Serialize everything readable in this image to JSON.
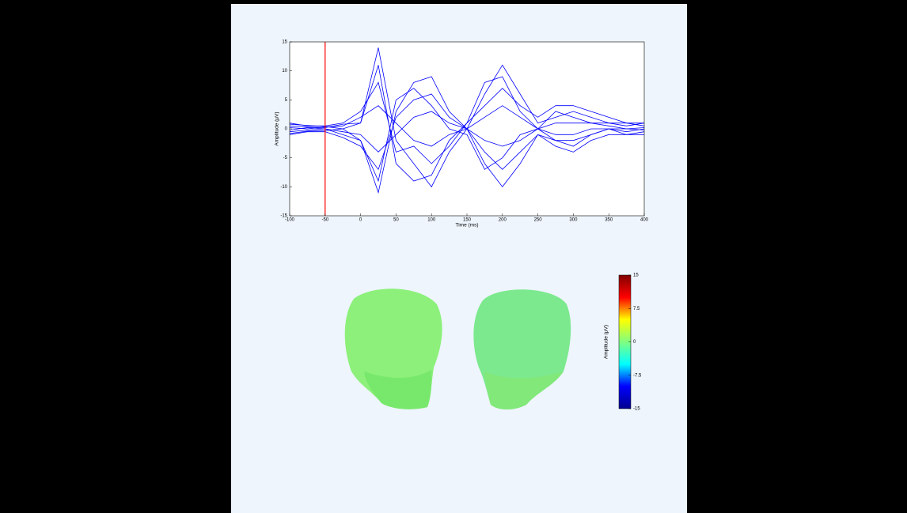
{
  "chart_data": [
    {
      "type": "line",
      "xlabel": "Time (ms)",
      "ylabel": "Amplitude (μV)",
      "x": [
        -100,
        -75,
        -50,
        -25,
        0,
        25,
        50,
        75,
        100,
        125,
        150,
        175,
        200,
        225,
        250,
        275,
        300,
        325,
        350,
        375,
        400
      ],
      "series": [
        {
          "color": "#0000ff",
          "values": [
            0.5,
            0.3,
            0.2,
            0.8,
            1,
            14,
            -2,
            -6,
            -10,
            -4,
            0,
            6,
            11,
            6,
            1,
            2,
            3,
            2,
            1,
            1,
            0.5
          ]
        },
        {
          "color": "#0000ff",
          "values": [
            -0.5,
            -0.2,
            0,
            -1,
            -2,
            -11,
            3,
            8,
            9,
            3,
            0,
            -6,
            -10,
            -6,
            -1,
            -2,
            -2,
            -1,
            0,
            -0.5,
            0
          ]
        },
        {
          "color": "#0000ff",
          "values": [
            1,
            0.5,
            0.5,
            1,
            3,
            8,
            -4,
            -3,
            -6,
            -3,
            1,
            4,
            7,
            4,
            2,
            4,
            4,
            3,
            2,
            1,
            1
          ]
        },
        {
          "color": "#0000ff",
          "values": [
            -1,
            -0.5,
            -0.5,
            -1.5,
            -3,
            -7,
            2,
            5,
            6,
            2,
            0,
            -4,
            -7,
            -4,
            -1,
            -3,
            -4,
            -2,
            -1,
            -1,
            -0.5
          ]
        },
        {
          "color": "#0000ff",
          "values": [
            0.2,
            0,
            0.3,
            0.5,
            2,
            4,
            1,
            -2,
            -3,
            -1,
            0,
            2,
            4,
            2,
            0,
            1,
            1,
            1,
            0.5,
            0,
            0.2
          ]
        },
        {
          "color": "#0000ff",
          "values": [
            -0.2,
            0.2,
            0,
            -0.5,
            -1,
            -4,
            -1,
            2,
            3,
            1,
            0,
            -2,
            -3,
            -2,
            0,
            -1,
            -1,
            0,
            0,
            0,
            -0.2
          ]
        },
        {
          "color": "#0000ff",
          "values": [
            0.8,
            0.6,
            0.4,
            0,
            1,
            11,
            -6,
            -9,
            -8,
            -2,
            1,
            8,
            9,
            3,
            0,
            3,
            2,
            1,
            1,
            0.5,
            1
          ]
        },
        {
          "color": "#0000ff",
          "values": [
            -0.8,
            -0.4,
            -0.3,
            0,
            -2,
            -9,
            5,
            7,
            4,
            0,
            -1,
            -7,
            -5,
            -1,
            0,
            -2,
            -3,
            -1,
            0,
            -1,
            -1
          ]
        }
      ],
      "xlim": [
        -100,
        400
      ],
      "xticks": [
        -100,
        -50,
        0,
        50,
        100,
        150,
        200,
        250,
        300,
        350,
        400
      ],
      "ylim": [
        -15,
        15
      ],
      "yticks": [
        -15,
        -10,
        -5,
        0,
        5,
        10,
        15
      ],
      "grid": false,
      "cursor": {
        "x": -50,
        "color": "#ff0000"
      }
    },
    {
      "type": "colorbar",
      "ylabel": "Amplitude (μV)",
      "ylim": [
        -15,
        15
      ],
      "yticks": [
        -15,
        -7.5,
        0,
        7.5,
        15
      ],
      "colors": [
        "#00008f",
        "#0000ff",
        "#00ffff",
        "#80ff80",
        "#ffff00",
        "#ff0000",
        "#800000"
      ]
    }
  ]
}
